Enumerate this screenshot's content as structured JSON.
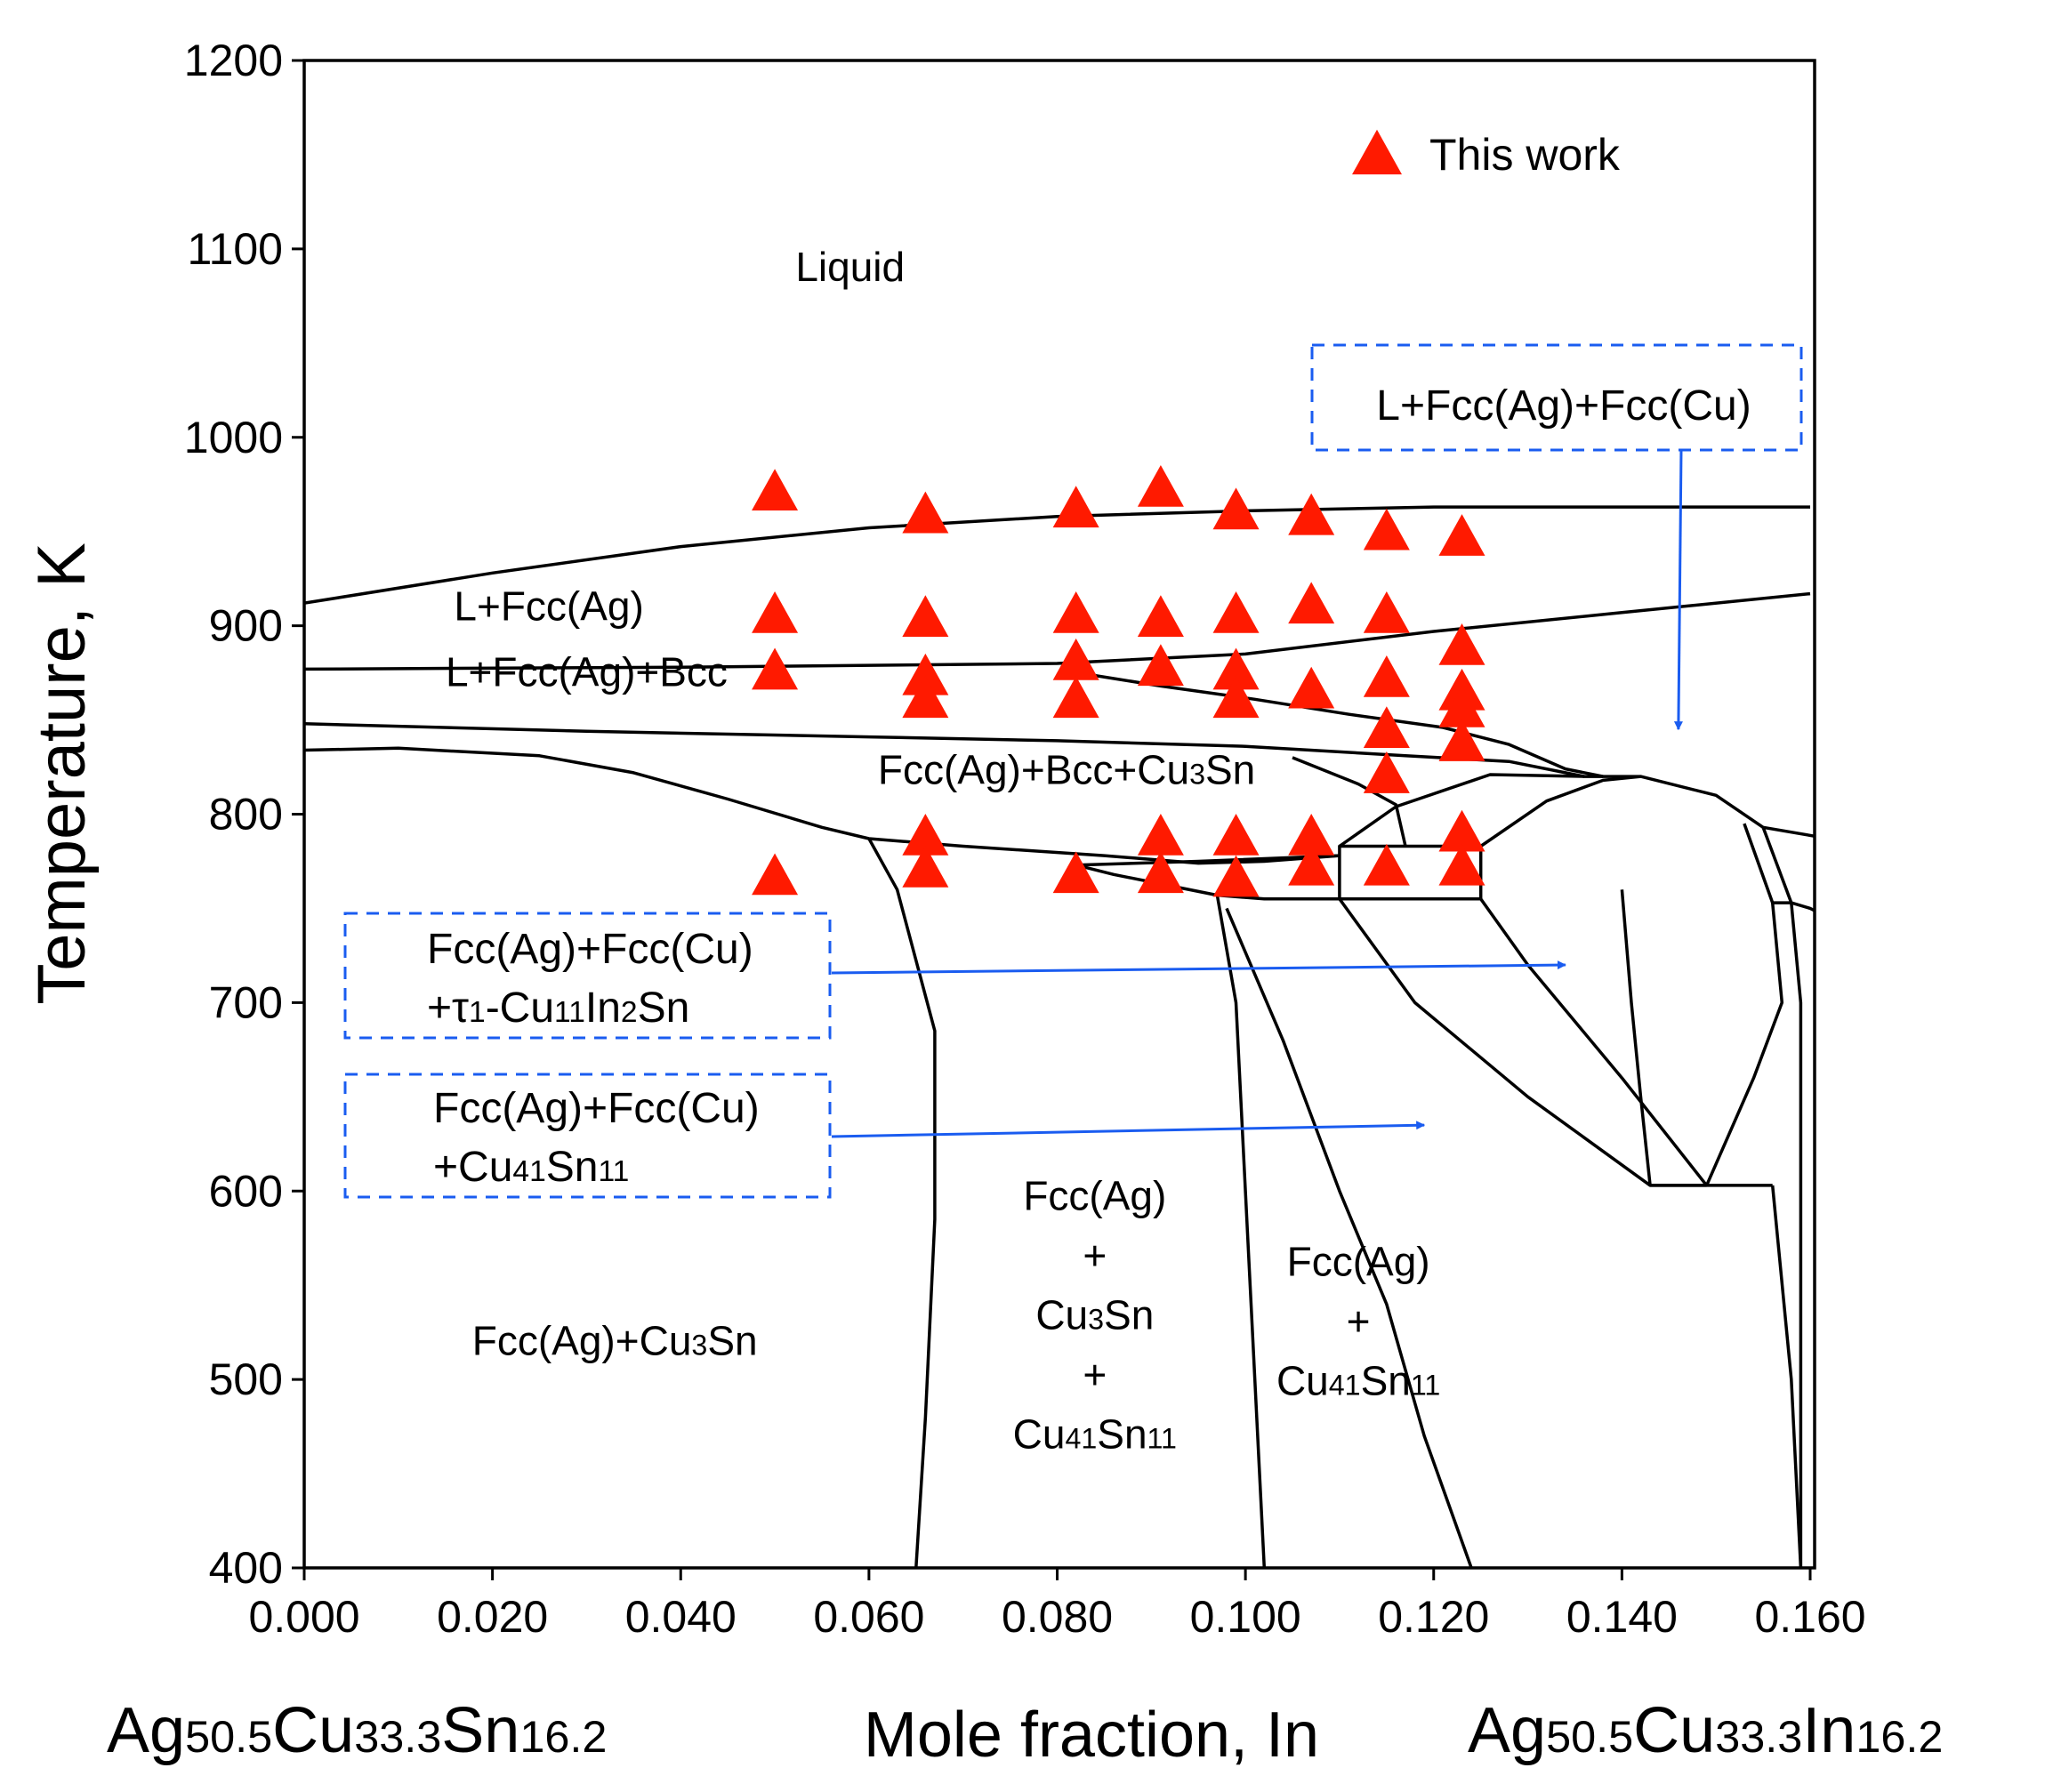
{
  "chart_data": {
    "type": "scatter",
    "title": "",
    "xlabel": "Mole fraction, In",
    "ylabel": "Temperature, K",
    "xlim": [
      0.0,
      0.16
    ],
    "ylim": [
      400,
      1200
    ],
    "x_ticks": [
      "0.000",
      "0.020",
      "0.040",
      "0.060",
      "0.080",
      "0.100",
      "0.120",
      "0.140",
      "0.160"
    ],
    "y_ticks": [
      "400",
      "500",
      "600",
      "700",
      "800",
      "900",
      "1000",
      "1100",
      "1200"
    ],
    "x_left_end_label": {
      "parts": [
        [
          "Ag",
          ""
        ],
        [
          "50.5",
          "sub"
        ],
        [
          "Cu",
          ""
        ],
        [
          "33.3",
          "sub"
        ],
        [
          "Sn",
          ""
        ],
        [
          "16.2",
          "sub"
        ]
      ]
    },
    "x_right_end_label": {
      "parts": [
        [
          "Ag",
          ""
        ],
        [
          "50.5",
          "sub"
        ],
        [
          "Cu",
          ""
        ],
        [
          "33.3",
          "sub"
        ],
        [
          "In",
          ""
        ],
        [
          "16.2",
          "sub"
        ]
      ]
    },
    "legend": {
      "position": "top-right",
      "label": "This work",
      "marker": "triangle",
      "color": "#ff1a00"
    },
    "series": [
      {
        "name": "This work",
        "marker": "triangle",
        "color": "#ff1a00",
        "points": [
          [
            0.05,
            970
          ],
          [
            0.05,
            905
          ],
          [
            0.05,
            875
          ],
          [
            0.05,
            766
          ],
          [
            0.066,
            958
          ],
          [
            0.066,
            903
          ],
          [
            0.066,
            872
          ],
          [
            0.066,
            860
          ],
          [
            0.066,
            787
          ],
          [
            0.066,
            770
          ],
          [
            0.082,
            961
          ],
          [
            0.082,
            905
          ],
          [
            0.082,
            880
          ],
          [
            0.082,
            860
          ],
          [
            0.082,
            767
          ],
          [
            0.091,
            972
          ],
          [
            0.091,
            903
          ],
          [
            0.091,
            877
          ],
          [
            0.091,
            787
          ],
          [
            0.091,
            767
          ],
          [
            0.099,
            960
          ],
          [
            0.099,
            905
          ],
          [
            0.099,
            875
          ],
          [
            0.099,
            860
          ],
          [
            0.099,
            787
          ],
          [
            0.099,
            765
          ],
          [
            0.107,
            957
          ],
          [
            0.107,
            910
          ],
          [
            0.107,
            865
          ],
          [
            0.107,
            787
          ],
          [
            0.107,
            771
          ],
          [
            0.115,
            949
          ],
          [
            0.115,
            905
          ],
          [
            0.115,
            871
          ],
          [
            0.115,
            844
          ],
          [
            0.115,
            820
          ],
          [
            0.115,
            771
          ],
          [
            0.123,
            946
          ],
          [
            0.123,
            888
          ],
          [
            0.123,
            864
          ],
          [
            0.123,
            855
          ],
          [
            0.123,
            837
          ],
          [
            0.123,
            789
          ],
          [
            0.123,
            771
          ]
        ]
      }
    ],
    "phase_boundaries": [
      [
        [
          0.0,
          912
        ],
        [
          0.02,
          928
        ],
        [
          0.04,
          942
        ],
        [
          0.06,
          952
        ],
        [
          0.08,
          958
        ],
        [
          0.1,
          961
        ],
        [
          0.12,
          963
        ],
        [
          0.14,
          963
        ],
        [
          0.16,
          963
        ]
      ],
      [
        [
          0.0,
          877
        ],
        [
          0.04,
          878
        ],
        [
          0.08,
          880
        ],
        [
          0.1,
          885
        ],
        [
          0.12,
          897
        ],
        [
          0.14,
          907
        ],
        [
          0.16,
          917
        ]
      ],
      [
        [
          0.0,
          848
        ],
        [
          0.03,
          844
        ],
        [
          0.06,
          841
        ],
        [
          0.08,
          839
        ],
        [
          0.1,
          836
        ],
        [
          0.117,
          831
        ],
        [
          0.128,
          828
        ],
        [
          0.136,
          820
        ]
      ],
      [
        [
          0.0,
          834
        ],
        [
          0.01,
          835
        ],
        [
          0.025,
          831
        ],
        [
          0.035,
          822
        ],
        [
          0.045,
          808
        ],
        [
          0.055,
          793
        ],
        [
          0.06,
          787
        ],
        [
          0.07,
          783
        ],
        [
          0.085,
          778
        ],
        [
          0.095,
          774
        ],
        [
          0.102,
          775
        ],
        [
          0.11,
          778
        ]
      ],
      [
        [
          0.081,
          876
        ],
        [
          0.091,
          868
        ],
        [
          0.101,
          861
        ],
        [
          0.111,
          853
        ],
        [
          0.121,
          846
        ],
        [
          0.128,
          837
        ],
        [
          0.134,
          824
        ],
        [
          0.138,
          820
        ]
      ],
      [
        [
          0.06,
          787
        ],
        [
          0.063,
          760
        ],
        [
          0.067,
          685
        ],
        [
          0.067,
          585
        ],
        [
          0.066,
          480
        ],
        [
          0.065,
          400
        ]
      ],
      [
        [
          0.082,
          773
        ],
        [
          0.086,
          768
        ],
        [
          0.092,
          762
        ],
        [
          0.097,
          757
        ],
        [
          0.102,
          755
        ],
        [
          0.11,
          755
        ],
        [
          0.125,
          755
        ]
      ],
      [
        [
          0.082,
          773
        ],
        [
          0.095,
          775
        ],
        [
          0.11,
          778
        ]
      ],
      [
        [
          0.097,
          757
        ],
        [
          0.099,
          700
        ],
        [
          0.1,
          600
        ],
        [
          0.101,
          500
        ],
        [
          0.102,
          400
        ]
      ],
      [
        [
          0.098,
          750
        ],
        [
          0.104,
          680
        ],
        [
          0.11,
          600
        ],
        [
          0.115,
          540
        ],
        [
          0.119,
          470
        ],
        [
          0.124,
          400
        ]
      ],
      [
        [
          0.11,
          755
        ],
        [
          0.11,
          783
        ],
        [
          0.125,
          783
        ],
        [
          0.125,
          755
        ]
      ],
      [
        [
          0.11,
          755
        ],
        [
          0.118,
          700
        ],
        [
          0.13,
          650
        ],
        [
          0.143,
          603
        ],
        [
          0.149,
          603
        ]
      ],
      [
        [
          0.125,
          755
        ],
        [
          0.13,
          720
        ],
        [
          0.14,
          660
        ],
        [
          0.149,
          603
        ]
      ],
      [
        [
          0.125,
          783
        ],
        [
          0.132,
          807
        ],
        [
          0.138,
          818
        ],
        [
          0.142,
          820
        ]
      ],
      [
        [
          0.11,
          783
        ],
        [
          0.116,
          804
        ],
        [
          0.126,
          821
        ],
        [
          0.136,
          820
        ],
        [
          0.142,
          820
        ],
        [
          0.15,
          810
        ],
        [
          0.155,
          793
        ],
        [
          0.162,
          787
        ]
      ],
      [
        [
          0.105,
          830
        ],
        [
          0.112,
          816
        ],
        [
          0.116,
          805
        ],
        [
          0.117,
          783
        ]
      ],
      [
        [
          0.149,
          603
        ],
        [
          0.154,
          660
        ],
        [
          0.157,
          700
        ],
        [
          0.156,
          753
        ],
        [
          0.153,
          795
        ]
      ],
      [
        [
          0.143,
          603
        ],
        [
          0.142,
          650
        ],
        [
          0.141,
          700
        ],
        [
          0.14,
          760
        ]
      ],
      [
        [
          0.143,
          603
        ],
        [
          0.156,
          603
        ]
      ],
      [
        [
          0.156,
          603
        ],
        [
          0.158,
          500
        ],
        [
          0.159,
          400
        ]
      ],
      [
        [
          0.156,
          753
        ],
        [
          0.158,
          753
        ],
        [
          0.16,
          750
        ],
        [
          0.162,
          745
        ]
      ],
      [
        [
          0.158,
          753
        ],
        [
          0.159,
          700
        ],
        [
          0.159,
          600
        ],
        [
          0.159,
          500
        ],
        [
          0.159,
          400
        ]
      ],
      [
        [
          0.155,
          793
        ],
        [
          0.158,
          753
        ]
      ]
    ],
    "region_labels": [
      {
        "text": "Liquid",
        "x": 0.058,
        "y": 1083
      },
      {
        "text": "L+Fcc(Ag)",
        "x": 0.026,
        "y": 903
      },
      {
        "text": "L+Fcc(Ag)+Bcc",
        "x": 0.03,
        "y": 868
      },
      {
        "text": "Fcc(Ag)+Bcc+Cu3Sn",
        "x": 0.081,
        "y": 816,
        "sub": [
          "3"
        ]
      },
      {
        "text": "Fcc(Ag)+Cu3Sn",
        "x": 0.033,
        "y": 513,
        "sub": [
          "3"
        ]
      },
      {
        "lines": [
          "Fcc(Ag)",
          "+",
          "Cu3Sn",
          "+",
          "Cu41Sn11"
        ],
        "x": 0.084,
        "y": 590
      },
      {
        "lines": [
          "Fcc(Ag)",
          "+",
          "Cu41Sn11"
        ],
        "x": 0.112,
        "y": 555
      }
    ],
    "boxed_labels": [
      {
        "lines": [
          "L+Fcc(Ag)+Fcc(Cu)"
        ],
        "arrow_to": [
          0.146,
          845
        ]
      },
      {
        "lines": [
          "Fcc(Ag)+Fcc(Cu)",
          "+τ1-Cu11In2Sn"
        ],
        "arrow_to": [
          0.134,
          720
        ]
      },
      {
        "lines": [
          "Fcc(Ag)+Fcc(Cu)",
          "+Cu41Sn11"
        ],
        "arrow_to": [
          0.119,
          635
        ]
      }
    ],
    "grid": false
  }
}
